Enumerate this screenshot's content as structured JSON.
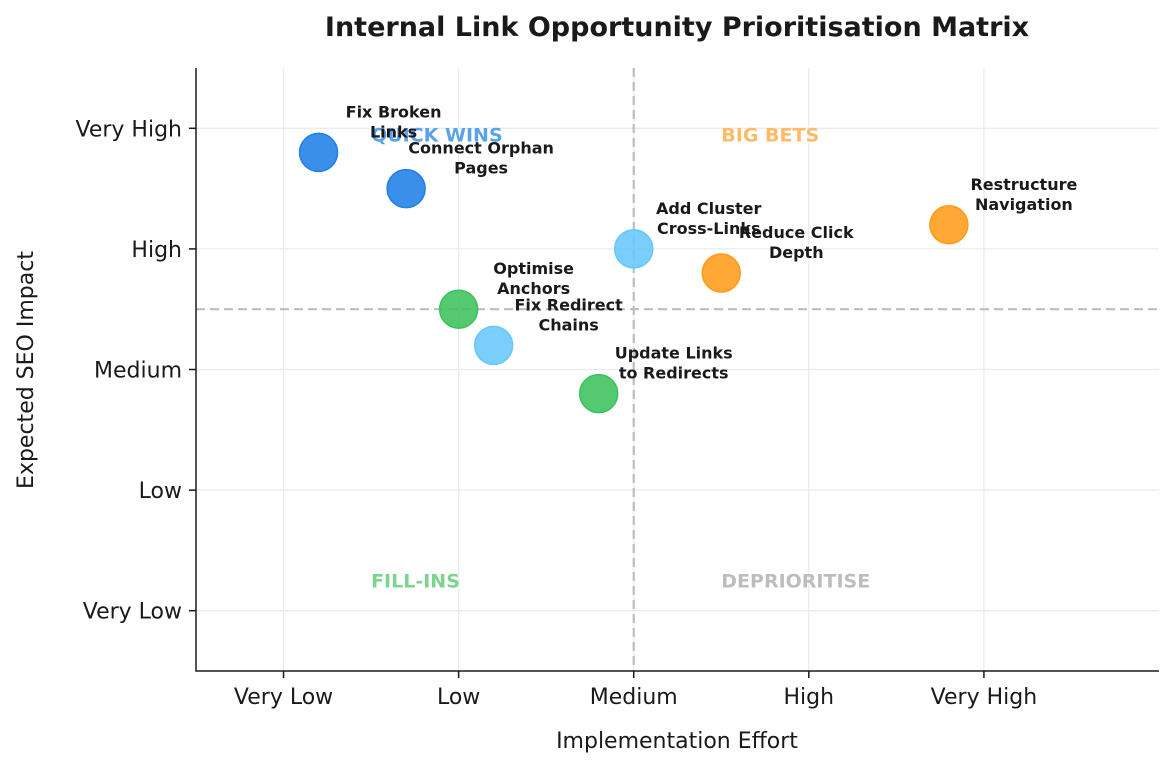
{
  "chart_data": {
    "type": "scatter",
    "title": "Internal Link Opportunity Prioritisation Matrix",
    "xlabel": "Implementation Effort",
    "ylabel": "Expected SEO Impact",
    "xlim": [
      0.5,
      6
    ],
    "ylim": [
      0.5,
      5.5
    ],
    "x_ticks": [
      {
        "value": 1,
        "label": "Very Low"
      },
      {
        "value": 2,
        "label": "Low"
      },
      {
        "value": 3,
        "label": "Medium"
      },
      {
        "value": 4,
        "label": "High"
      },
      {
        "value": 5,
        "label": "Very High"
      }
    ],
    "y_ticks": [
      {
        "value": 1,
        "label": "Very Low"
      },
      {
        "value": 2,
        "label": "Low"
      },
      {
        "value": 3,
        "label": "Medium"
      },
      {
        "value": 4,
        "label": "High"
      },
      {
        "value": 5,
        "label": "Very High"
      }
    ],
    "grid": true,
    "dividers": {
      "x": 3,
      "y": 3.5
    },
    "quadrant_labels": [
      {
        "text": "QUICK WINS",
        "x": 1.5,
        "y": 4.95,
        "color": "#5aa3e8"
      },
      {
        "text": "BIG BETS",
        "x": 3.5,
        "y": 4.95,
        "color": "#ffbb66"
      },
      {
        "text": "FILL-INS",
        "x": 1.5,
        "y": 1.25,
        "color": "#7dd491"
      },
      {
        "text": "DEPRIORITISE",
        "x": 3.5,
        "y": 1.25,
        "color": "#bdbdbd"
      }
    ],
    "points": [
      {
        "label": [
          "Fix Broken",
          "Links"
        ],
        "x": 1.2,
        "y": 4.8,
        "color": "#1f7fe6"
      },
      {
        "label": [
          "Connect Orphan",
          "Pages"
        ],
        "x": 1.7,
        "y": 4.5,
        "color": "#1f7fe6"
      },
      {
        "label": [
          "Add Cluster",
          "Cross-Links"
        ],
        "x": 3.0,
        "y": 4.0,
        "color": "#66c7fa"
      },
      {
        "label": [
          "Reduce Click",
          "Depth"
        ],
        "x": 3.5,
        "y": 3.8,
        "color": "#ff9c1a"
      },
      {
        "label": [
          "Restructure",
          "Navigation"
        ],
        "x": 4.8,
        "y": 4.2,
        "color": "#ff9c1a"
      },
      {
        "label": [
          "Optimise",
          "Anchors"
        ],
        "x": 2.0,
        "y": 3.5,
        "color": "#3cc25c"
      },
      {
        "label": [
          "Fix Redirect",
          "Chains"
        ],
        "x": 2.2,
        "y": 3.2,
        "color": "#66c7fa"
      },
      {
        "label": [
          "Update Links",
          "to Redirects"
        ],
        "x": 2.8,
        "y": 2.8,
        "color": "#3cc25c"
      }
    ]
  }
}
